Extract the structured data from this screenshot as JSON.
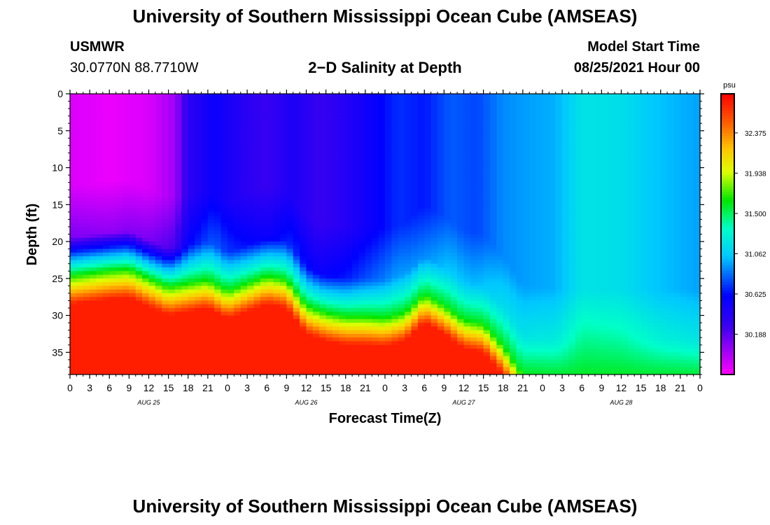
{
  "header": {
    "title": "University of Southern Mississippi Ocean Cube (AMSEAS)",
    "station": "USMWR",
    "coordinates": "30.0770N  88.7710W",
    "subtitle": "2−D Salinity at Depth",
    "model_start_label": "Model Start Time",
    "model_start_date": "08/25/2021 Hour 00"
  },
  "footer": {
    "title": "University of Southern Mississippi Ocean Cube (AMSEAS)"
  },
  "chart_data": {
    "type": "heatmap",
    "title": "2−D Salinity at Depth",
    "xlabel": "Forecast Time(Z)",
    "ylabel": "Depth (ft)",
    "x_hours_range": [
      0,
      96
    ],
    "y_range": [
      0,
      38
    ],
    "y_ticks": [
      0,
      5,
      10,
      15,
      20,
      25,
      30,
      35
    ],
    "x_tick_labels": [
      "0",
      "3",
      "6",
      "9",
      "12",
      "15",
      "18",
      "21",
      "0",
      "3",
      "6",
      "9",
      "12",
      "15",
      "18",
      "21",
      "0",
      "3",
      "6",
      "9",
      "12",
      "15",
      "18",
      "21",
      "0",
      "3",
      "6",
      "9",
      "12",
      "15",
      "18",
      "21",
      "0"
    ],
    "day_labels": [
      {
        "label": "AUG 25",
        "hour": 12
      },
      {
        "label": "AUG 26",
        "hour": 36
      },
      {
        "label": "AUG 27",
        "hour": 60
      },
      {
        "label": "AUG 28",
        "hour": 84
      }
    ],
    "colorbar": {
      "unit": "psu",
      "min": 29.75,
      "max": 32.8,
      "tick_values": [
        30.188,
        30.625,
        31.062,
        31.5,
        31.938,
        32.375
      ],
      "tick_labels": [
        "30.188",
        "30.625",
        "31.062",
        "31.500",
        "31.938",
        "32.375"
      ]
    },
    "surface_salinity_by_hour": [
      [
        0,
        29.85
      ],
      [
        6,
        29.8
      ],
      [
        12,
        29.85
      ],
      [
        16,
        30.0
      ],
      [
        18,
        30.35
      ],
      [
        22,
        30.55
      ],
      [
        26,
        30.4
      ],
      [
        30,
        30.3
      ],
      [
        34,
        30.45
      ],
      [
        38,
        30.3
      ],
      [
        42,
        30.4
      ],
      [
        46,
        30.55
      ],
      [
        50,
        30.7
      ],
      [
        54,
        30.65
      ],
      [
        58,
        30.8
      ],
      [
        62,
        30.75
      ],
      [
        66,
        30.9
      ],
      [
        70,
        30.95
      ],
      [
        74,
        30.98
      ],
      [
        78,
        31.18
      ],
      [
        84,
        31.15
      ],
      [
        90,
        31.02
      ],
      [
        96,
        30.95
      ]
    ],
    "halocline_depth_ft_by_hour": [
      [
        0,
        24.5
      ],
      [
        6,
        23.8
      ],
      [
        9,
        23.6
      ],
      [
        12,
        24.8
      ],
      [
        15,
        26.0
      ],
      [
        18,
        25.5
      ],
      [
        21,
        25.0
      ],
      [
        24,
        26.5
      ],
      [
        27,
        25.5
      ],
      [
        30,
        24.5
      ],
      [
        33,
        25.0
      ],
      [
        36,
        28.5
      ],
      [
        39,
        29.5
      ],
      [
        42,
        30.0
      ],
      [
        45,
        30.0
      ],
      [
        48,
        30.2
      ],
      [
        51,
        29.5
      ],
      [
        54,
        27.0
      ],
      [
        57,
        28.5
      ],
      [
        60,
        30.5
      ],
      [
        63,
        31.0
      ],
      [
        66,
        34.0
      ],
      [
        69,
        38.0
      ],
      [
        75,
        38.5
      ],
      [
        96,
        38.5
      ]
    ],
    "bottom_salinity_psu": 32.7
  }
}
